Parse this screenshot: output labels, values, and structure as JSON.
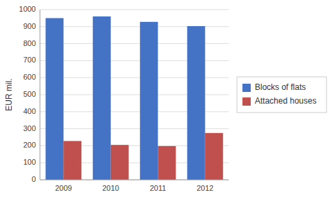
{
  "chart_data": {
    "type": "bar",
    "categories": [
      "2009",
      "2010",
      "2011",
      "2012"
    ],
    "series": [
      {
        "name": "Blocks of flats",
        "color": "#4472C4",
        "values": [
          950,
          960,
          928,
          903
        ]
      },
      {
        "name": "Attached houses",
        "color": "#C0504D",
        "values": [
          228,
          205,
          198,
          275
        ]
      }
    ],
    "ylabel": "EUR mil.",
    "ylim": [
      0,
      1000
    ],
    "yticks": [
      0,
      100,
      200,
      300,
      400,
      500,
      600,
      700,
      800,
      900,
      1000
    ],
    "grid": true,
    "legend": "right"
  }
}
